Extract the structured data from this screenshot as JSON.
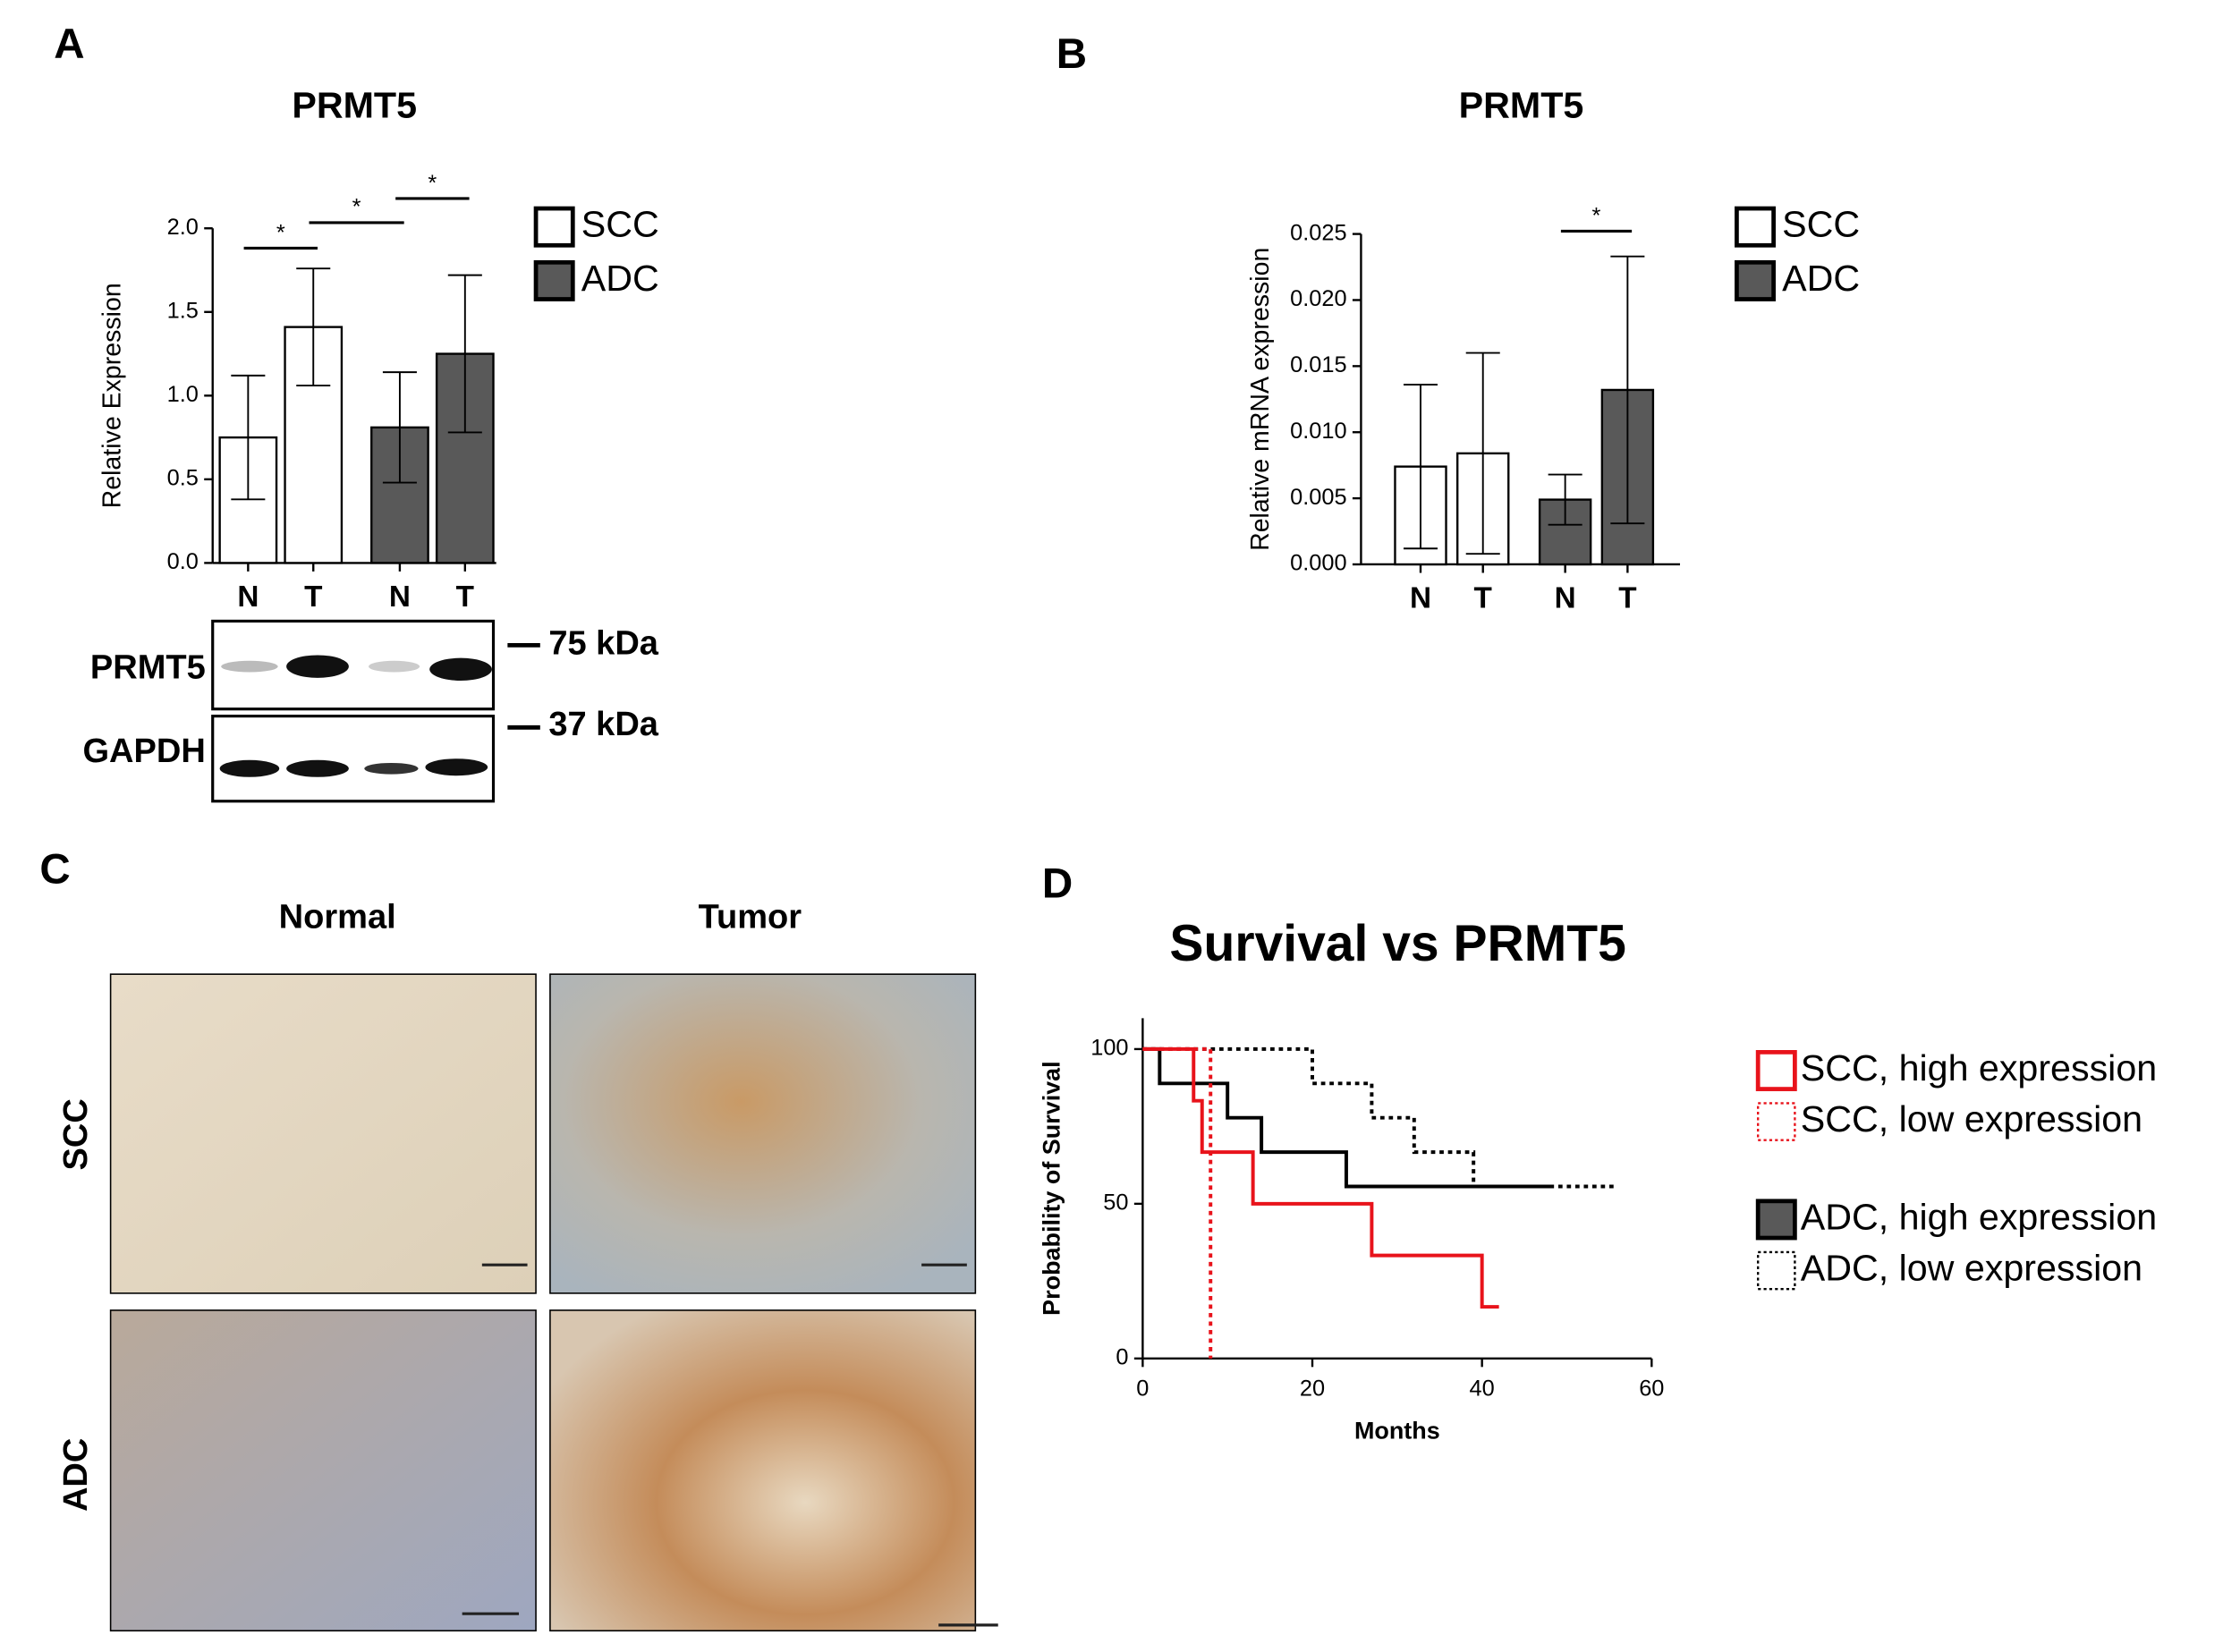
{
  "panel_labels": [
    "A",
    "B",
    "C",
    "D"
  ],
  "blot": {
    "proteins": [
      "PRMT5",
      "GAPDH"
    ],
    "markers": [
      "75 kDa",
      "37 kDa"
    ]
  },
  "ihc": {
    "columns": [
      "Normal",
      "Tumor"
    ],
    "rows": [
      "SCC",
      "ADC"
    ]
  },
  "chart_data": [
    {
      "type": "bar",
      "title": "PRMT5",
      "y_label": "Relative Expression",
      "categories": [
        "N",
        "T",
        "N",
        "T"
      ],
      "series": [
        {
          "name": "SCC",
          "color": "#ffffff",
          "values": [
            0.75,
            1.41,
            null,
            null
          ],
          "errors": [
            0.37,
            0.35,
            null,
            null
          ]
        },
        {
          "name": "ADC",
          "color": "#595959",
          "values": [
            null,
            null,
            0.81,
            1.25
          ],
          "errors": [
            null,
            null,
            0.33,
            0.47
          ]
        }
      ],
      "ylim": [
        0,
        2.0
      ],
      "yticks": [
        {
          "value": 0,
          "label": "0.0"
        },
        {
          "value": 0.5,
          "label": "0.5"
        },
        {
          "value": 1.0,
          "label": "1.0"
        },
        {
          "value": 1.5,
          "label": "1.5"
        },
        {
          "value": 2.0,
          "label": "2.0"
        }
      ],
      "significance": [
        {
          "pair": [
            0,
            1
          ],
          "label": "*"
        },
        {
          "pair": [
            1,
            2
          ],
          "label": "*"
        },
        {
          "pair": [
            2,
            3
          ],
          "label": "*"
        }
      ]
    },
    {
      "type": "bar",
      "title": "PRMT5",
      "y_label": "Relative mRNA expression",
      "categories": [
        "N",
        "T",
        "N",
        "T"
      ],
      "series": [
        {
          "name": "SCC",
          "color": "#ffffff",
          "values": [
            0.0074,
            0.0084,
            null,
            null
          ],
          "errors": [
            0.0062,
            0.0076,
            null,
            null
          ]
        },
        {
          "name": "ADC",
          "color": "#595959",
          "values": [
            null,
            null,
            0.0049,
            0.0132
          ],
          "errors": [
            null,
            null,
            0.0019,
            0.0101
          ]
        }
      ],
      "ylim": [
        0,
        0.025
      ],
      "yticks": [
        {
          "value": 0,
          "label": "0.000"
        },
        {
          "value": 0.005,
          "label": "0.005"
        },
        {
          "value": 0.01,
          "label": "0.010"
        },
        {
          "value": 0.015,
          "label": "0.015"
        },
        {
          "value": 0.02,
          "label": "0.020"
        },
        {
          "value": 0.025,
          "label": "0.025"
        }
      ],
      "significance": [
        {
          "pair": [
            2,
            3
          ],
          "label": "*"
        }
      ]
    },
    {
      "type": "step",
      "title": "Survival vs PRMT5",
      "x_label": "Months",
      "y_label": "Probability of Survival",
      "series": [
        {
          "name": "SCC, high expression",
          "color": "#e8131b",
          "line_style": "solid",
          "x": [
            0,
            6,
            7,
            13,
            27,
            40,
            42
          ],
          "values": [
            100,
            83.3,
            66.7,
            50,
            33.3,
            16.7,
            16.7
          ]
        },
        {
          "name": "SCC, low expression",
          "color": "#e8131b",
          "line_style": "dotted",
          "x": [
            0,
            8,
            8
          ],
          "values": [
            100,
            0,
            0
          ]
        },
        {
          "name": "ADC, high expression",
          "color": "#000000",
          "line_style": "solid",
          "x": [
            0,
            2,
            10,
            14,
            24,
            48
          ],
          "values": [
            100,
            88.9,
            77.8,
            66.7,
            55.6,
            55.6
          ]
        },
        {
          "name": "ADC, low expression",
          "color": "#000000",
          "line_style": "dotted",
          "x": [
            0,
            20,
            27,
            32,
            39,
            56
          ],
          "values": [
            100,
            88.9,
            77.8,
            66.7,
            55.6,
            55.6
          ]
        }
      ],
      "xlim": [
        0,
        60
      ],
      "xticks": [
        0,
        20,
        40,
        60
      ],
      "ylim": [
        0,
        110
      ],
      "yticks": [
        0,
        50,
        100
      ]
    }
  ]
}
